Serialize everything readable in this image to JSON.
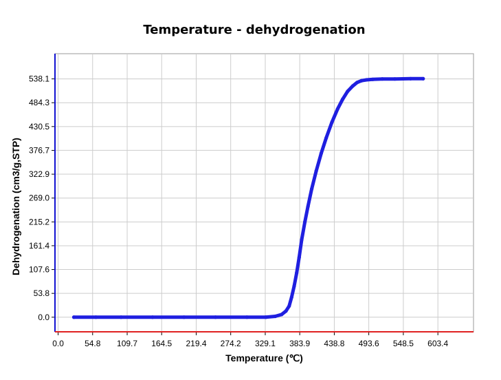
{
  "chart_data": {
    "type": "line",
    "title": "Temperature - dehydrogenation",
    "xlabel": "Temperature (℃)",
    "ylabel": "Dehydrogenation (cm3/g,STP)",
    "xlim": [
      -5,
      660
    ],
    "ylim": [
      -33,
      595
    ],
    "x_ticks": [
      "0.0",
      "54.8",
      "109.7",
      "164.5",
      "219.4",
      "274.2",
      "329.1",
      "383.9",
      "438.8",
      "493.6",
      "548.5",
      "603.4"
    ],
    "y_ticks": [
      "0.0",
      "53.8",
      "107.6",
      "161.4",
      "215.2",
      "269.0",
      "322.9",
      "376.7",
      "430.5",
      "484.3",
      "538.1"
    ],
    "grid": true,
    "series": [
      {
        "color": "#1f1fe0",
        "x": [
          25,
          60,
          100,
          150,
          200,
          250,
          300,
          330,
          345,
          355,
          362,
          367,
          371,
          375,
          379,
          383,
          387,
          392,
          397,
          403,
          410,
          418,
          426,
          435,
          444,
          452,
          460,
          468,
          475,
          482,
          490,
          500,
          515,
          535,
          560,
          580
        ],
        "y": [
          0,
          0,
          0,
          0,
          0,
          0,
          0,
          0,
          2,
          6,
          14,
          25,
          45,
          70,
          100,
          135,
          175,
          215,
          250,
          290,
          330,
          370,
          405,
          440,
          470,
          492,
          510,
          522,
          530,
          534,
          536,
          537,
          538,
          538,
          538.5,
          538.5
        ]
      }
    ]
  }
}
